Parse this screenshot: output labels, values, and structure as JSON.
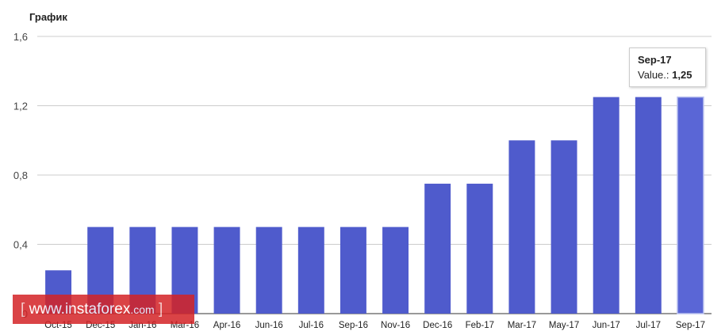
{
  "chart_data": {
    "type": "bar",
    "title": "График",
    "categories": [
      "Oct-15",
      "Dec-15",
      "Jan-16",
      "Mar-16",
      "Apr-16",
      "Jun-16",
      "Jul-16",
      "Sep-16",
      "Nov-16",
      "Dec-16",
      "Feb-17",
      "Mar-17",
      "May-17",
      "Jun-17",
      "Jul-17",
      "Sep-17"
    ],
    "values": [
      0.25,
      0.5,
      0.5,
      0.5,
      0.5,
      0.5,
      0.5,
      0.5,
      0.5,
      0.75,
      0.75,
      1.0,
      1.0,
      1.25,
      1.25,
      1.25
    ],
    "ylim": [
      0,
      1.6
    ],
    "yticks": [
      "0",
      "0,4",
      "0,8",
      "1,2",
      "1,6"
    ],
    "ytick_values": [
      0,
      0.4,
      0.8,
      1.2,
      1.6
    ],
    "grid": true,
    "bar_color": "#4f5bcc",
    "highlight_bar_color": "#5a66d6",
    "tooltip": {
      "title": "Sep-17",
      "label": "Value.:",
      "value": "1,25"
    }
  },
  "watermark": {
    "open": "[",
    "text": "www.instaforex",
    "suffix": ".com",
    "close": "]"
  }
}
